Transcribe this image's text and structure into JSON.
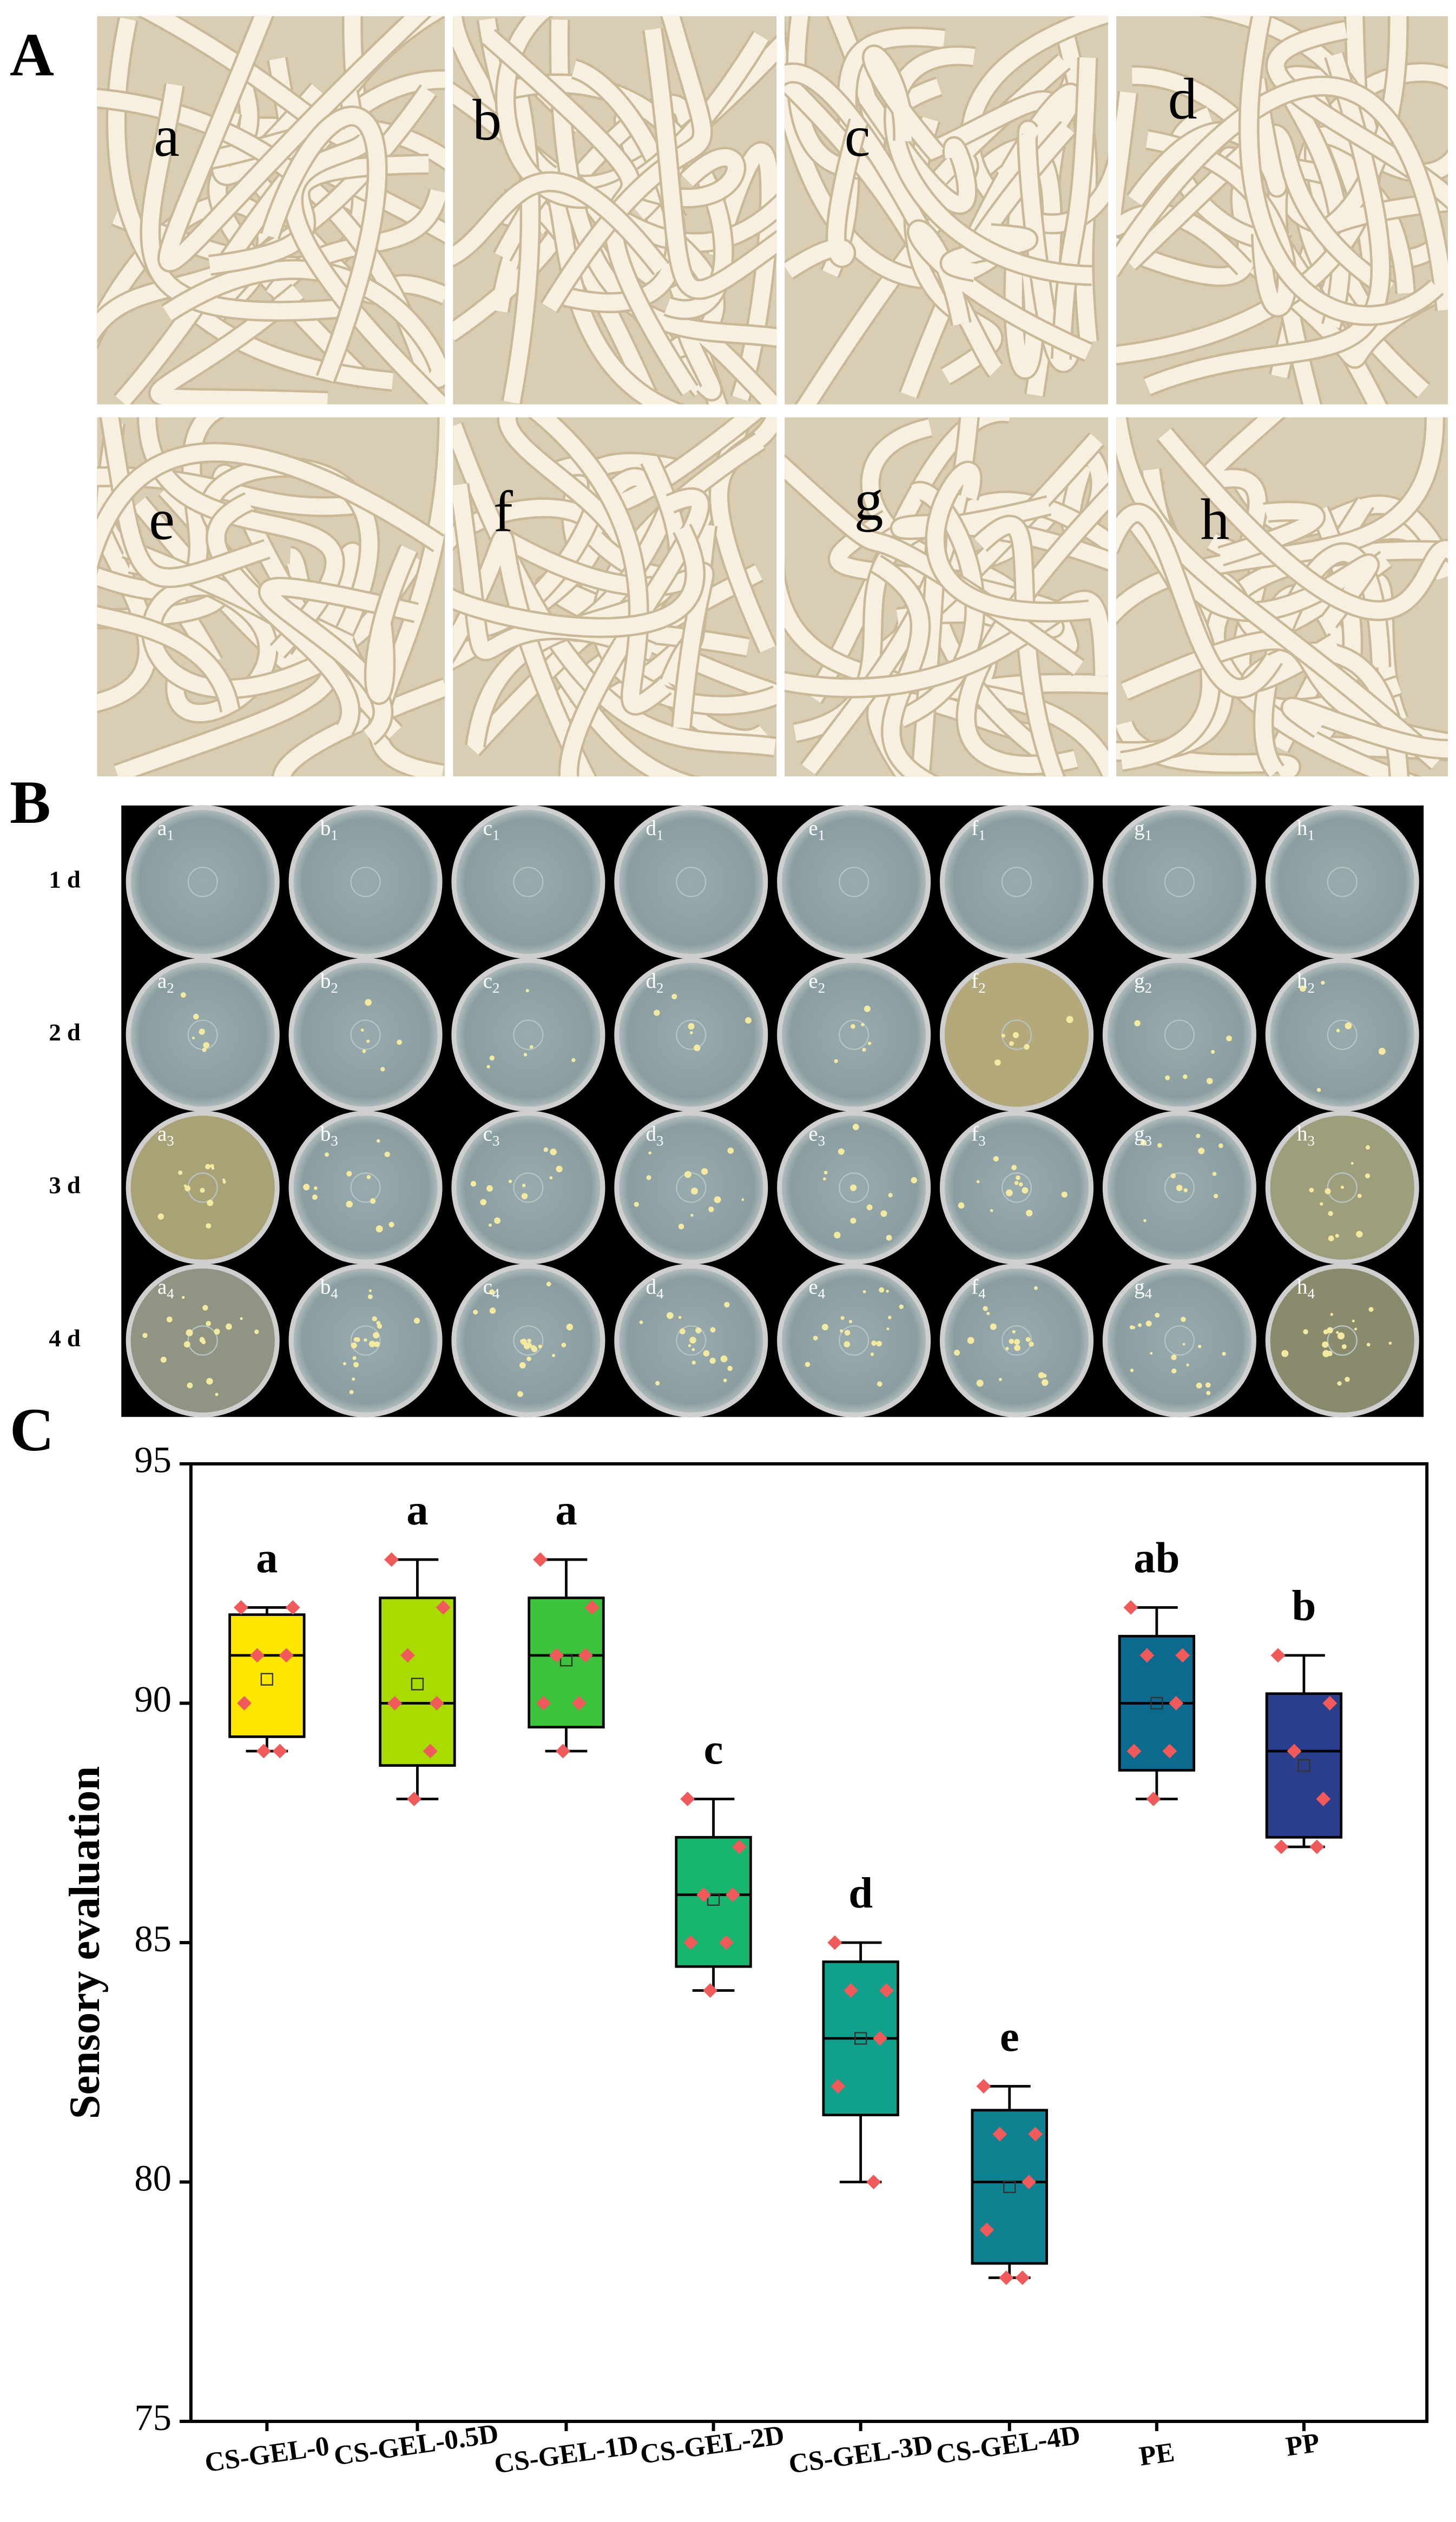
{
  "panel_a": {
    "label": "A",
    "photos": [
      "a",
      "b",
      "c",
      "d",
      "e",
      "f",
      "g",
      "h"
    ]
  },
  "panel_b": {
    "label": "B",
    "columns": [
      "a",
      "b",
      "c",
      "d",
      "e",
      "f",
      "g",
      "h"
    ],
    "rows": [
      {
        "day": "1 d",
        "sub": "1"
      },
      {
        "day": "2 d",
        "sub": "2"
      },
      {
        "day": "3 d",
        "sub": "3"
      },
      {
        "day": "4 d",
        "sub": "4"
      }
    ]
  },
  "chart_data": {
    "type": "box",
    "panel_label": "C",
    "ylabel": "Sensory evaluation",
    "ylim": [
      75,
      95
    ],
    "yticks": [
      75,
      80,
      85,
      90,
      95
    ],
    "point_color": "#f05a5a",
    "categories": [
      "CS-GEL-0",
      "CS-GEL-0.5D",
      "CS-GEL-1D",
      "CS-GEL-2D",
      "CS-GEL-3D",
      "CS-GEL-4D",
      "PE",
      "PP"
    ],
    "boxes": [
      {
        "color": "#ffe600",
        "whisker_low": 89,
        "q1": 89.3,
        "median": 91,
        "q3": 91.85,
        "whisker_high": 92,
        "mean": 90.5,
        "points": [
          92,
          92,
          91,
          91,
          90,
          89,
          89
        ],
        "letter": "a"
      },
      {
        "color": "#a8dc00",
        "whisker_low": 88,
        "q1": 88.7,
        "median": 90,
        "q3": 92.2,
        "whisker_high": 93,
        "mean": 90.4,
        "points": [
          93,
          92,
          91,
          90,
          90,
          89,
          88
        ],
        "letter": "a"
      },
      {
        "color": "#3cc23c",
        "whisker_low": 89,
        "q1": 89.5,
        "median": 91,
        "q3": 92.2,
        "whisker_high": 93,
        "mean": 90.9,
        "points": [
          93,
          92,
          91,
          91,
          90,
          90,
          89
        ],
        "letter": "a"
      },
      {
        "color": "#17b56e",
        "whisker_low": 84,
        "q1": 84.5,
        "median": 86,
        "q3": 87.2,
        "whisker_high": 88,
        "mean": 85.9,
        "points": [
          88,
          87,
          86,
          86,
          85,
          85,
          84
        ],
        "letter": "c"
      },
      {
        "color": "#11a08c",
        "whisker_low": 80,
        "q1": 81.4,
        "median": 83,
        "q3": 84.6,
        "whisker_high": 85,
        "mean": 83,
        "points": [
          85,
          84,
          84,
          83,
          82,
          80
        ],
        "letter": "d"
      },
      {
        "color": "#0e8290",
        "whisker_low": 78,
        "q1": 78.3,
        "median": 80,
        "q3": 81.5,
        "whisker_high": 82,
        "mean": 79.9,
        "points": [
          82,
          81,
          81,
          80,
          79,
          78,
          78
        ],
        "letter": "e"
      },
      {
        "color": "#0c6a8e",
        "whisker_low": 88,
        "q1": 88.6,
        "median": 90,
        "q3": 91.4,
        "whisker_high": 92,
        "mean": 90,
        "points": [
          92,
          91,
          91,
          90,
          89,
          89,
          88
        ],
        "letter": "ab"
      },
      {
        "color": "#2b3e8c",
        "whisker_low": 87,
        "q1": 87.2,
        "median": 89,
        "q3": 90.2,
        "whisker_high": 91,
        "mean": 88.7,
        "points": [
          91,
          90,
          89,
          88,
          87,
          87
        ],
        "letter": "b"
      }
    ]
  }
}
